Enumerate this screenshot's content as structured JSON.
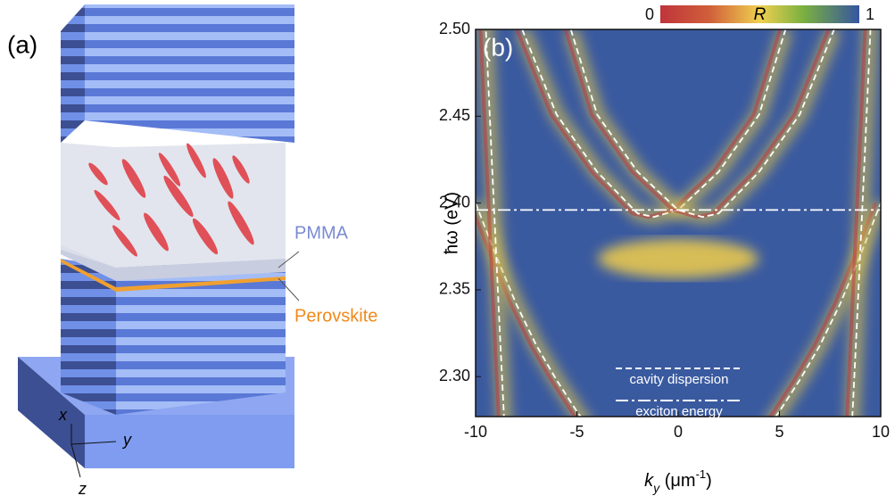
{
  "diagram": {
    "panel_label": "(a)",
    "layer_labels": [
      "PMMA",
      "Perovskite"
    ],
    "axes": [
      "x",
      "y",
      "z"
    ]
  },
  "chart_data": {
    "type": "line",
    "panel_label": "(b)",
    "x_label": [
      "k",
      "y",
      " (μm",
      "-1",
      ")"
    ],
    "y_label": "ħω (eV)",
    "xlim": [
      -10,
      10
    ],
    "ylim": [
      2.277,
      2.5
    ],
    "xticks": [
      -10,
      -5,
      0,
      5,
      10
    ],
    "yticks": [
      {
        "value": 2.3,
        "label": "2.30"
      },
      2.35,
      {
        "value": 2.4,
        "label": "2.40"
      },
      2.45,
      {
        "value": 2.5,
        "label": "2.50"
      }
    ],
    "colorbar": {
      "label": "R",
      "ticks": [
        0,
        1
      ],
      "lim": [
        0,
        1
      ]
    },
    "series": [
      {
        "name": "cavity dispersion",
        "color": "#ffffff",
        "dash": "dashed",
        "x": [
          -7.7,
          -6,
          -4,
          -2,
          -1.2,
          0,
          2,
          4,
          5.3
        ],
        "y": [
          2.5,
          2.451,
          2.418,
          2.394,
          2.392,
          2.396,
          2.418,
          2.451,
          2.5
        ]
      },
      {
        "color": "#ffffff",
        "dash": "dashed",
        "x": [
          -5.3,
          -4,
          -2,
          0,
          1.2,
          2,
          4,
          6,
          7.7
        ],
        "y": [
          2.5,
          2.451,
          2.418,
          2.396,
          2.392,
          2.394,
          2.418,
          2.451,
          2.5
        ]
      },
      {
        "color": "#ffffff",
        "dash": "dashed",
        "x": [
          -10,
          -9,
          -8,
          -7,
          -6,
          -5,
          -4.5,
          null,
          4.5,
          5,
          6,
          7,
          8,
          9,
          10
        ],
        "y": [
          2.4,
          2.37,
          2.342,
          2.318,
          2.298,
          2.28,
          2.272,
          null,
          2.272,
          2.28,
          2.298,
          2.318,
          2.342,
          2.37,
          2.4
        ]
      },
      {
        "color": "#ffffff",
        "dash": "dashed",
        "x": [
          -9.6,
          -9.2,
          -8.8,
          -8.5,
          null,
          8.5,
          8.8,
          9.2,
          9.6
        ],
        "y": [
          2.527,
          2.424,
          2.325,
          2.254,
          null,
          2.254,
          2.325,
          2.424,
          2.527
        ]
      },
      {
        "name": "exciton energy",
        "color": "#ffffff",
        "dash": "dashdot",
        "x": [
          -10,
          10
        ],
        "y": [
          2.396,
          2.396
        ]
      }
    ]
  }
}
